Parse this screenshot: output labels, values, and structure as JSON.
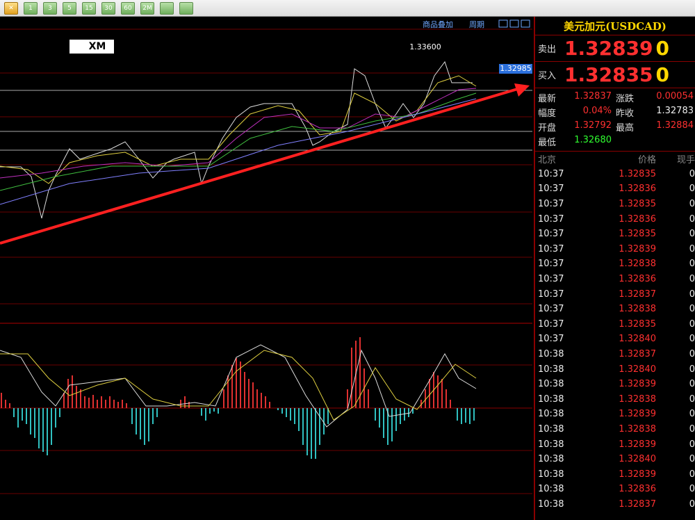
{
  "toolbar": {
    "buttons": [
      "1",
      "3",
      "5",
      "15",
      "30",
      "60",
      "2M"
    ]
  },
  "chart": {
    "overlay_button": "商品叠加",
    "period_button": "周期",
    "logo": "XM",
    "high_label": "1.33600",
    "price_tag": "1.32985"
  },
  "quote": {
    "title": "美元加元(USDCAD)",
    "sell": {
      "label": "卖出",
      "price": "1.32839",
      "volume": "0"
    },
    "buy": {
      "label": "买入",
      "price": "1.32835",
      "volume": "0"
    },
    "stats": [
      {
        "label": "最新",
        "value": "1.32837"
      },
      {
        "label": "涨跌",
        "value": "0.00054"
      },
      {
        "label": "幅度",
        "value": "0.04%"
      },
      {
        "label": "昨收",
        "value": "1.32783"
      },
      {
        "label": "开盘",
        "value": "1.32792"
      },
      {
        "label": "最高",
        "value": "1.32884"
      },
      {
        "label": "最低",
        "value": "1.32680"
      }
    ],
    "ticks": {
      "headers": [
        "北京",
        "价格",
        "现手"
      ],
      "rows": [
        [
          "10:37",
          "1.32835",
          "0"
        ],
        [
          "10:37",
          "1.32836",
          "0"
        ],
        [
          "10:37",
          "1.32835",
          "0"
        ],
        [
          "10:37",
          "1.32836",
          "0"
        ],
        [
          "10:37",
          "1.32835",
          "0"
        ],
        [
          "10:37",
          "1.32839",
          "0"
        ],
        [
          "10:37",
          "1.32838",
          "0"
        ],
        [
          "10:37",
          "1.32836",
          "0"
        ],
        [
          "10:37",
          "1.32837",
          "0"
        ],
        [
          "10:37",
          "1.32838",
          "0"
        ],
        [
          "10:37",
          "1.32835",
          "0"
        ],
        [
          "10:37",
          "1.32840",
          "0"
        ],
        [
          "10:38",
          "1.32837",
          "0"
        ],
        [
          "10:38",
          "1.32840",
          "0"
        ],
        [
          "10:38",
          "1.32839",
          "0"
        ],
        [
          "10:38",
          "1.32838",
          "0"
        ],
        [
          "10:38",
          "1.32839",
          "0"
        ],
        [
          "10:38",
          "1.32838",
          "0"
        ],
        [
          "10:38",
          "1.32839",
          "0"
        ],
        [
          "10:38",
          "1.32840",
          "0"
        ],
        [
          "10:38",
          "1.32839",
          "0"
        ],
        [
          "10:38",
          "1.32836",
          "0"
        ],
        [
          "10:38",
          "1.32837",
          "0"
        ]
      ]
    }
  }
}
